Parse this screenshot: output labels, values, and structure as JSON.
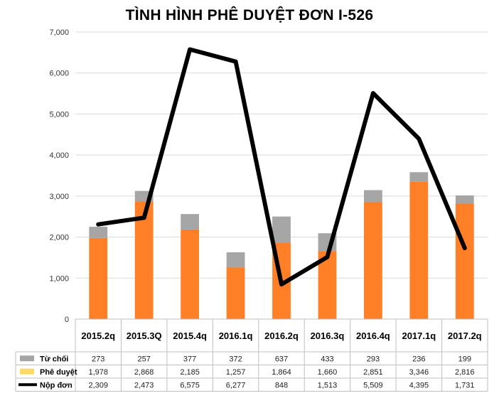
{
  "chart_data": {
    "type": "bar",
    "title": "TÌNH HÌNH PHÊ DUYỆT ĐƠN I-526",
    "categories": [
      "2015.2q",
      "2015.3Q",
      "2015.4q",
      "2016.1q",
      "2016.2q",
      "2016.3q",
      "2016.4q",
      "2017.1q",
      "2017.2q"
    ],
    "ylim": [
      0,
      7000
    ],
    "yticks": [
      "0",
      "1,000",
      "2,000",
      "3,000",
      "4,000",
      "5,000",
      "6,000",
      "7,000"
    ],
    "grid": true,
    "stacked": true,
    "series": [
      {
        "name": "Từ chối",
        "kind": "bar",
        "color": "#a5a5a5",
        "values": [
          273,
          257,
          377,
          372,
          637,
          433,
          293,
          236,
          199
        ],
        "labels": [
          "273",
          "257",
          "377",
          "372",
          "637",
          "433",
          "293",
          "236",
          "199"
        ]
      },
      {
        "name": "Phê duyệt",
        "kind": "bar",
        "color": "#ff7f27",
        "legend_color": "#ffd966",
        "values": [
          1978,
          2868,
          2185,
          1257,
          1864,
          1660,
          2851,
          3346,
          2816
        ],
        "labels": [
          "1,978",
          "2,868",
          "2,185",
          "1,257",
          "1,864",
          "1,660",
          "2,851",
          "3,346",
          "2,816"
        ]
      },
      {
        "name": "Nộp đơn",
        "kind": "line",
        "color": "#000000",
        "values": [
          2309,
          2473,
          6575,
          6277,
          848,
          1513,
          5509,
          4395,
          1731
        ],
        "labels": [
          "2,309",
          "2,473",
          "6,575",
          "6,277",
          "848",
          "1,513",
          "5,509",
          "4,395",
          "1,731"
        ]
      }
    ]
  }
}
